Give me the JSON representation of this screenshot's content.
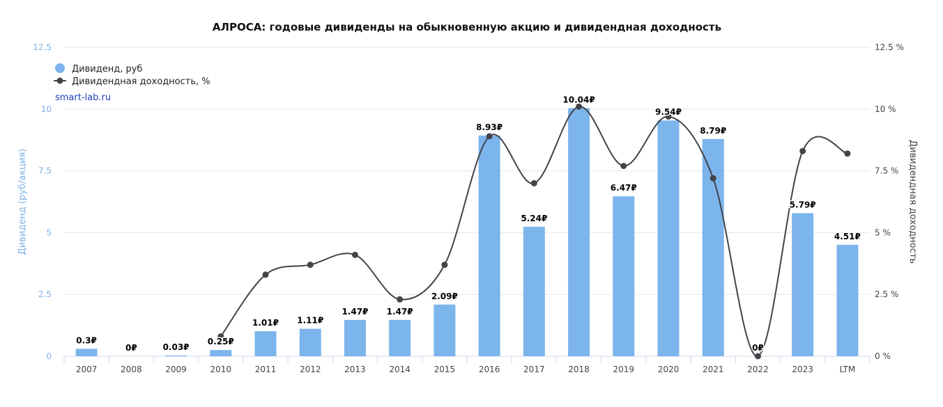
{
  "chart_data": {
    "type": "bar",
    "title": "АЛРОСА: годовые дивиденды на обыкновенную акцию и дивидендная доходность",
    "categories": [
      "2007",
      "2008",
      "2009",
      "2010",
      "2011",
      "2012",
      "2013",
      "2014",
      "2015",
      "2016",
      "2017",
      "2018",
      "2019",
      "2020",
      "2021",
      "2022",
      "2023",
      "LTM"
    ],
    "series": [
      {
        "name": "Дивиденд, руб",
        "type": "bar",
        "axis": "left",
        "color": "#7cb5ec",
        "values": [
          0.3,
          0,
          0.03,
          0.25,
          1.01,
          1.11,
          1.47,
          1.47,
          2.09,
          8.93,
          5.24,
          10.04,
          6.47,
          9.54,
          8.79,
          0,
          5.79,
          4.51
        ],
        "labels": [
          "0.3₽",
          "0₽",
          "0.03₽",
          "0.25₽",
          "1.01₽",
          "1.11₽",
          "1.47₽",
          "1.47₽",
          "2.09₽",
          "8.93₽",
          "5.24₽",
          "10.04₽",
          "6.47₽",
          "9.54₽",
          "8.79₽",
          "0₽",
          "5.79₽",
          "4.51₽"
        ]
      },
      {
        "name": "Дивидендная доходность, %",
        "type": "line",
        "axis": "right",
        "color": "#434348",
        "values": [
          null,
          null,
          null,
          0.8,
          3.3,
          3.7,
          4.1,
          2.3,
          3.7,
          8.9,
          7.0,
          10.1,
          7.7,
          9.7,
          7.2,
          0.0,
          8.3,
          8.2
        ]
      }
    ],
    "y_left": {
      "label": "Дивиденд (руб/акция)",
      "ylim": [
        0,
        12.5
      ],
      "ticks": [
        "0",
        "2.5",
        "5",
        "7.5",
        "10",
        "12.5"
      ]
    },
    "y_right": {
      "label": "Дивидендная доходность",
      "ylim": [
        0,
        12.5
      ],
      "ticks": [
        "0 %",
        "2.5 %",
        "5 %",
        "7.5 %",
        "10 %",
        "12.5 %"
      ]
    },
    "grid": true,
    "legend_position": "top-left",
    "watermark": "smart-lab.ru"
  }
}
